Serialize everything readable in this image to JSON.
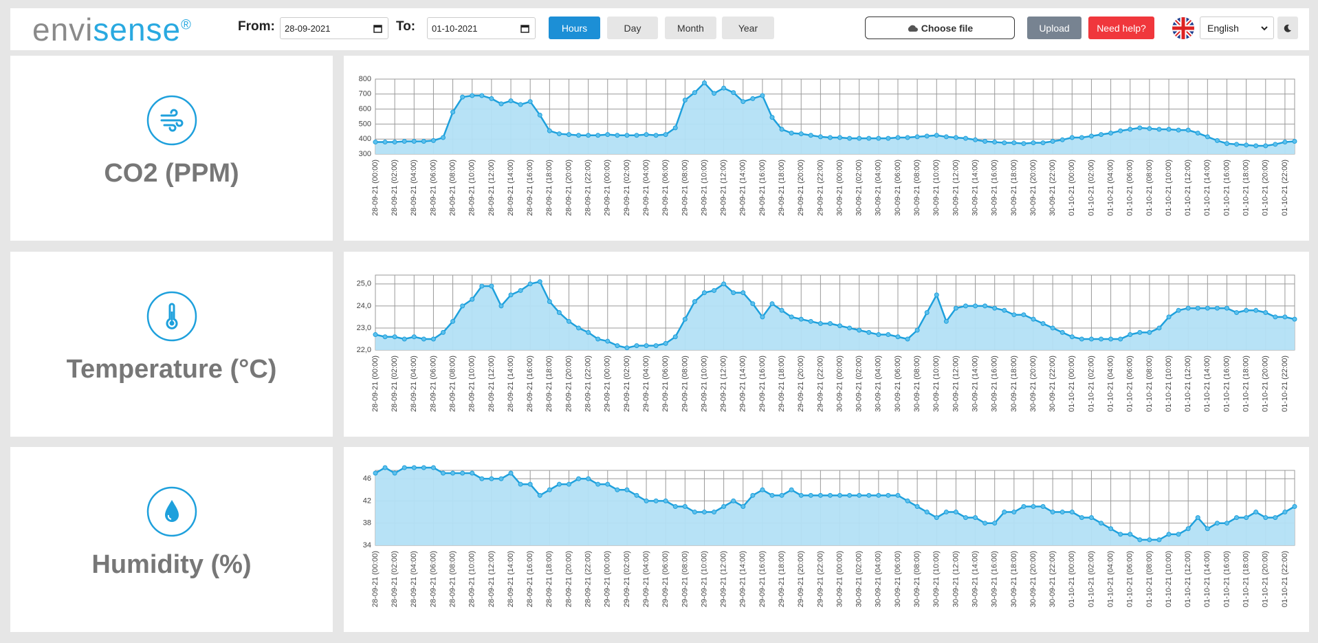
{
  "header": {
    "logo_parts": [
      "envi",
      "sense",
      "®"
    ],
    "from_label": "From:",
    "from_date": "28-09-2021",
    "to_label": "To:",
    "to_date": "01-10-2021",
    "range_buttons": [
      "Hours",
      "Day",
      "Month",
      "Year"
    ],
    "choose_file": "Choose file",
    "upload": "Upload",
    "help": "Need help?",
    "language": "English"
  },
  "chart_data": [
    {
      "type": "area",
      "title": "CO2 (PPM)",
      "color": "#1ea0dc",
      "fill": "#b3e0f5",
      "categories": [
        "28-09-21 (00:00)",
        null,
        "28-09-21 (02:00)",
        null,
        "28-09-21 (04:00)",
        null,
        "28-09-21 (06:00)",
        null,
        "28-09-21 (08:00)",
        null,
        "28-09-21 (10:00)",
        null,
        "28-09-21 (12:00)",
        null,
        "28-09-21 (14:00)",
        null,
        "28-09-21 (16:00)",
        null,
        "28-09-21 (18:00)",
        null,
        "28-09-21 (20:00)",
        null,
        "28-09-21 (22:00)",
        null,
        "29-09-21 (00:00)",
        null,
        "29-09-21 (02:00)",
        null,
        "29-09-21 (04:00)",
        null,
        "29-09-21 (06:00)",
        null,
        "29-09-21 (08:00)",
        null,
        "29-09-21 (10:00)",
        null,
        "29-09-21 (12:00)",
        null,
        "29-09-21 (14:00)",
        null,
        "29-09-21 (16:00)",
        null,
        "29-09-21 (18:00)",
        null,
        "29-09-21 (20:00)",
        null,
        "29-09-21 (22:00)",
        null,
        "30-09-21 (00:00)",
        null,
        "30-09-21 (02:00)",
        null,
        "30-09-21 (04:00)",
        null,
        "30-09-21 (06:00)",
        null,
        "30-09-21 (08:00)",
        null,
        "30-09-21 (10:00)",
        null,
        "30-09-21 (12:00)",
        null,
        "30-09-21 (14:00)",
        null,
        "30-09-21 (16:00)",
        null,
        "30-09-21 (18:00)",
        null,
        "30-09-21 (20:00)",
        null,
        "30-09-21 (22:00)",
        null,
        "01-10-21 (00:00)",
        null,
        "01-10-21 (02:00)",
        null,
        "01-10-21 (04:00)",
        null,
        "01-10-21 (06:00)",
        null,
        "01-10-21 (08:00)",
        null,
        "01-10-21 (10:00)",
        null,
        "01-10-21 (12:00)",
        null,
        "01-10-21 (14:00)",
        null,
        "01-10-21 (16:00)",
        null,
        "01-10-21 (18:00)",
        null,
        "01-10-21 (20:00)",
        null,
        "01-10-21 (22:00)",
        null
      ],
      "values": [
        380,
        380,
        380,
        385,
        385,
        385,
        390,
        410,
        580,
        680,
        690,
        690,
        670,
        635,
        655,
        630,
        650,
        560,
        455,
        435,
        430,
        425,
        425,
        425,
        430,
        425,
        425,
        425,
        430,
        425,
        430,
        475,
        660,
        710,
        775,
        705,
        740,
        710,
        650,
        670,
        690,
        545,
        465,
        440,
        435,
        425,
        415,
        410,
        410,
        405,
        405,
        405,
        405,
        405,
        410,
        410,
        415,
        420,
        425,
        415,
        410,
        405,
        395,
        385,
        380,
        375,
        375,
        370,
        375,
        375,
        385,
        395,
        410,
        410,
        420,
        430,
        440,
        455,
        465,
        475,
        470,
        465,
        465,
        460,
        460,
        440,
        415,
        390,
        370,
        365,
        360,
        355,
        355,
        365,
        380,
        385
      ],
      "ylim": [
        300,
        800
      ],
      "yticks": [
        300,
        400,
        500,
        600,
        700,
        800
      ],
      "grid": true
    },
    {
      "type": "area",
      "title": "Temperature (°C)",
      "color": "#1ea0dc",
      "fill": "#b3e0f5",
      "categories": [
        "28-09-21 (00:00)",
        null,
        "28-09-21 (02:00)",
        null,
        "28-09-21 (04:00)",
        null,
        "28-09-21 (06:00)",
        null,
        "28-09-21 (08:00)",
        null,
        "28-09-21 (10:00)",
        null,
        "28-09-21 (12:00)",
        null,
        "28-09-21 (14:00)",
        null,
        "28-09-21 (16:00)",
        null,
        "28-09-21 (18:00)",
        null,
        "28-09-21 (20:00)",
        null,
        "28-09-21 (22:00)",
        null,
        "29-09-21 (00:00)",
        null,
        "29-09-21 (02:00)",
        null,
        "29-09-21 (04:00)",
        null,
        "29-09-21 (06:00)",
        null,
        "29-09-21 (08:00)",
        null,
        "29-09-21 (10:00)",
        null,
        "29-09-21 (12:00)",
        null,
        "29-09-21 (14:00)",
        null,
        "29-09-21 (16:00)",
        null,
        "29-09-21 (18:00)",
        null,
        "29-09-21 (20:00)",
        null,
        "29-09-21 (22:00)",
        null,
        "30-09-21 (00:00)",
        null,
        "30-09-21 (02:00)",
        null,
        "30-09-21 (04:00)",
        null,
        "30-09-21 (06:00)",
        null,
        "30-09-21 (08:00)",
        null,
        "30-09-21 (10:00)",
        null,
        "30-09-21 (12:00)",
        null,
        "30-09-21 (14:00)",
        null,
        "30-09-21 (16:00)",
        null,
        "30-09-21 (18:00)",
        null,
        "30-09-21 (20:00)",
        null,
        "30-09-21 (22:00)",
        null,
        "01-10-21 (00:00)",
        null,
        "01-10-21 (02:00)",
        null,
        "01-10-21 (04:00)",
        null,
        "01-10-21 (06:00)",
        null,
        "01-10-21 (08:00)",
        null,
        "01-10-21 (10:00)",
        null,
        "01-10-21 (12:00)",
        null,
        "01-10-21 (14:00)",
        null,
        "01-10-21 (16:00)",
        null,
        "01-10-21 (18:00)",
        null,
        "01-10-21 (20:00)",
        null,
        "01-10-21 (22:00)",
        null
      ],
      "values": [
        22.7,
        22.6,
        22.6,
        22.5,
        22.6,
        22.5,
        22.5,
        22.8,
        23.3,
        24.0,
        24.3,
        24.9,
        24.9,
        24.0,
        24.5,
        24.7,
        25.0,
        25.1,
        24.2,
        23.7,
        23.3,
        23.0,
        22.8,
        22.5,
        22.4,
        22.2,
        22.1,
        22.2,
        22.2,
        22.2,
        22.3,
        22.6,
        23.4,
        24.2,
        24.6,
        24.7,
        25.0,
        24.6,
        24.6,
        24.1,
        23.5,
        24.1,
        23.8,
        23.5,
        23.4,
        23.3,
        23.2,
        23.2,
        23.1,
        23.0,
        22.9,
        22.8,
        22.7,
        22.7,
        22.6,
        22.5,
        22.9,
        23.7,
        24.5,
        23.3,
        23.9,
        24.0,
        24.0,
        24.0,
        23.9,
        23.8,
        23.6,
        23.6,
        23.4,
        23.2,
        23.0,
        22.8,
        22.6,
        22.5,
        22.5,
        22.5,
        22.5,
        22.5,
        22.7,
        22.8,
        22.8,
        23.0,
        23.5,
        23.8,
        23.9,
        23.9,
        23.9,
        23.9,
        23.9,
        23.7,
        23.8,
        23.8,
        23.7,
        23.5,
        23.5,
        23.4
      ],
      "ylim": [
        22,
        25.4
      ],
      "yticks": [
        {
          "value": 22,
          "label": "22,0"
        },
        {
          "value": 23,
          "label": "23,0"
        },
        {
          "value": 24,
          "label": "24,0"
        },
        {
          "value": 25,
          "label": "25,0"
        }
      ],
      "grid": true
    },
    {
      "type": "area",
      "title": "Humidity (%)",
      "color": "#1ea0dc",
      "fill": "#b3e0f5",
      "categories": [
        "28-09-21 (00:00)",
        null,
        "28-09-21 (02:00)",
        null,
        "28-09-21 (04:00)",
        null,
        "28-09-21 (06:00)",
        null,
        "28-09-21 (08:00)",
        null,
        "28-09-21 (10:00)",
        null,
        "28-09-21 (12:00)",
        null,
        "28-09-21 (14:00)",
        null,
        "28-09-21 (16:00)",
        null,
        "28-09-21 (18:00)",
        null,
        "28-09-21 (20:00)",
        null,
        "28-09-21 (22:00)",
        null,
        "29-09-21 (00:00)",
        null,
        "29-09-21 (02:00)",
        null,
        "29-09-21 (04:00)",
        null,
        "29-09-21 (06:00)",
        null,
        "29-09-21 (08:00)",
        null,
        "29-09-21 (10:00)",
        null,
        "29-09-21 (12:00)",
        null,
        "29-09-21 (14:00)",
        null,
        "29-09-21 (16:00)",
        null,
        "29-09-21 (18:00)",
        null,
        "29-09-21 (20:00)",
        null,
        "29-09-21 (22:00)",
        null,
        "30-09-21 (00:00)",
        null,
        "30-09-21 (02:00)",
        null,
        "30-09-21 (04:00)",
        null,
        "30-09-21 (06:00)",
        null,
        "30-09-21 (08:00)",
        null,
        "30-09-21 (10:00)",
        null,
        "30-09-21 (12:00)",
        null,
        "30-09-21 (14:00)",
        null,
        "30-09-21 (16:00)",
        null,
        "30-09-21 (18:00)",
        null,
        "30-09-21 (20:00)",
        null,
        "30-09-21 (22:00)",
        null,
        "01-10-21 (00:00)",
        null,
        "01-10-21 (02:00)",
        null,
        "01-10-21 (04:00)",
        null,
        "01-10-21 (06:00)",
        null,
        "01-10-21 (08:00)",
        null,
        "01-10-21 (10:00)",
        null,
        "01-10-21 (12:00)",
        null,
        "01-10-21 (14:00)",
        null,
        "01-10-21 (16:00)",
        null,
        "01-10-21 (18:00)",
        null,
        "01-10-21 (20:00)",
        null,
        "01-10-21 (22:00)",
        null
      ],
      "values": [
        47,
        48,
        47,
        48,
        48,
        48,
        48,
        47,
        47,
        47,
        47,
        46,
        46,
        46,
        47,
        45,
        45,
        43,
        44,
        45,
        45,
        46,
        46,
        45,
        45,
        44,
        44,
        43,
        42,
        42,
        42,
        41,
        41,
        40,
        40,
        40,
        41,
        42,
        41,
        43,
        44,
        43,
        43,
        44,
        43,
        43,
        43,
        43,
        43,
        43,
        43,
        43,
        43,
        43,
        43,
        42,
        41,
        40,
        39,
        40,
        40,
        39,
        39,
        38,
        38,
        40,
        40,
        41,
        41,
        41,
        40,
        40,
        40,
        39,
        39,
        38,
        37,
        36,
        36,
        35,
        35,
        35,
        36,
        36,
        37,
        39,
        37,
        38,
        38,
        39,
        39,
        40,
        39,
        39,
        40,
        41
      ],
      "ylim": [
        34,
        47.5
      ],
      "yticks": [
        34,
        38,
        42,
        46
      ],
      "grid": true
    }
  ]
}
